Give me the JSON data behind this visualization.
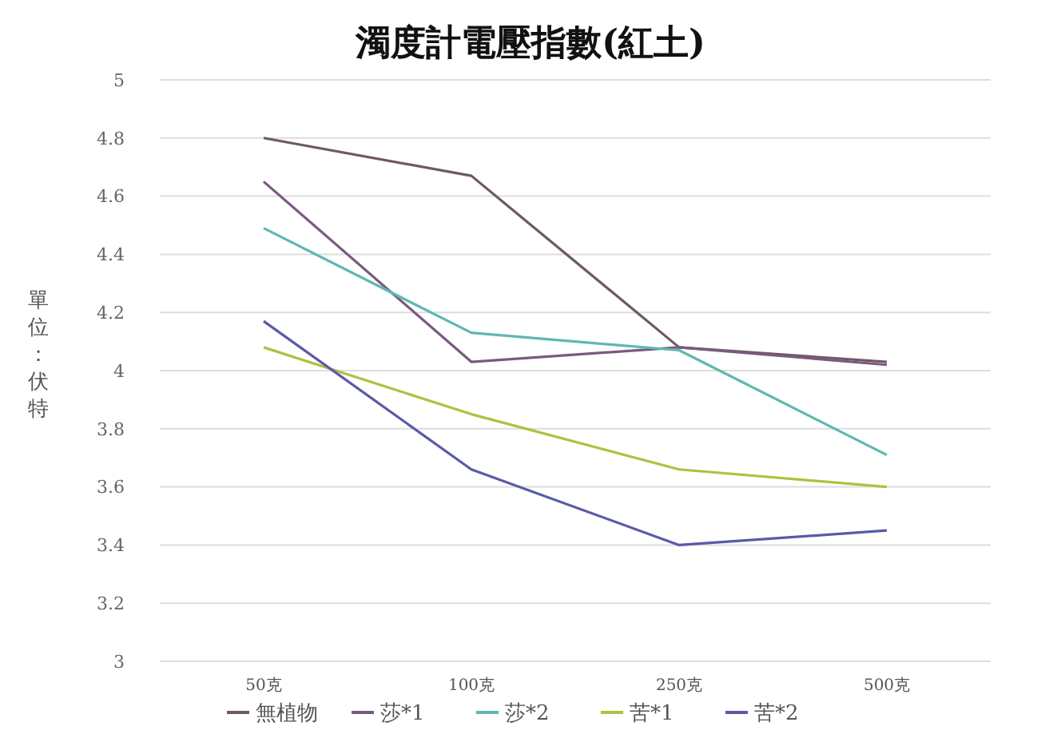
{
  "chart_data": {
    "type": "line",
    "title": "濁度計電壓指數(紅土)",
    "ylabel": "單位：伏特",
    "categories": [
      "50克",
      "100克",
      "250克",
      "500克"
    ],
    "series": [
      {
        "name": "無植物",
        "color": "#6e5868",
        "values": [
          4.8,
          4.67,
          4.08,
          4.03
        ]
      },
      {
        "name": "莎*1",
        "color": "#7a5a80",
        "values": [
          4.65,
          4.03,
          4.08,
          4.02
        ]
      },
      {
        "name": "莎*2",
        "color": "#5fb8b0",
        "values": [
          4.49,
          4.13,
          4.07,
          3.71
        ]
      },
      {
        "name": "苦*1",
        "color": "#b0c040",
        "values": [
          4.08,
          3.85,
          3.66,
          3.6
        ]
      },
      {
        "name": "苦*2",
        "color": "#5a5aa8",
        "values": [
          4.17,
          3.66,
          3.4,
          3.45
        ]
      }
    ],
    "ylim": [
      3,
      5
    ],
    "yticks": [
      3,
      3.2,
      3.4,
      3.6,
      3.8,
      4,
      4.2,
      4.4,
      4.6,
      4.8,
      5
    ],
    "grid": "y",
    "legend": "bottom",
    "marker": "none",
    "line_style": "solid"
  }
}
